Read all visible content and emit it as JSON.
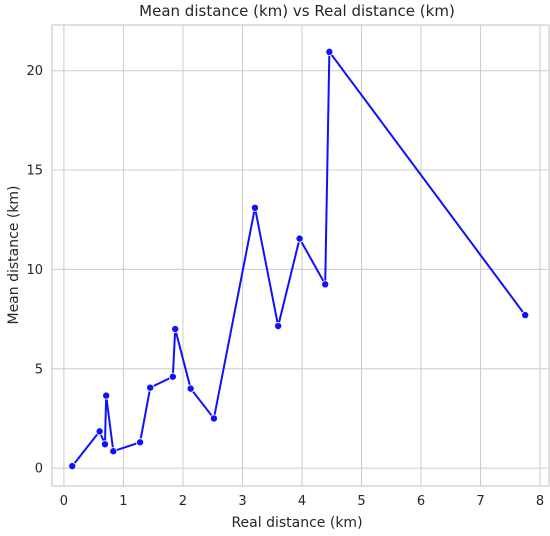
{
  "chart_data": {
    "type": "line",
    "title": "Mean distance (km) vs Real distance (km)",
    "xlabel": "Real distance (km)",
    "ylabel": "Mean distance (km)",
    "xlim": [
      -0.2,
      8.15
    ],
    "ylim": [
      -0.9,
      22.3
    ],
    "xticks": [
      0,
      1,
      2,
      3,
      4,
      5,
      6,
      7,
      8
    ],
    "yticks": [
      0,
      5,
      10,
      15,
      20
    ],
    "grid": true,
    "line_color": "#1010ff",
    "marker_color": "#1010ff",
    "series": [
      {
        "x": [
          0.14,
          0.6,
          0.69,
          0.71,
          0.83,
          1.28,
          1.45,
          1.83,
          1.87,
          2.13,
          2.52,
          3.21,
          3.6,
          3.96,
          4.39,
          4.46,
          7.75
        ],
        "y": [
          0.1,
          1.85,
          1.2,
          3.65,
          0.85,
          1.3,
          4.05,
          4.6,
          7.0,
          4.0,
          2.5,
          13.1,
          7.15,
          11.55,
          9.25,
          20.95,
          7.7
        ]
      }
    ]
  }
}
